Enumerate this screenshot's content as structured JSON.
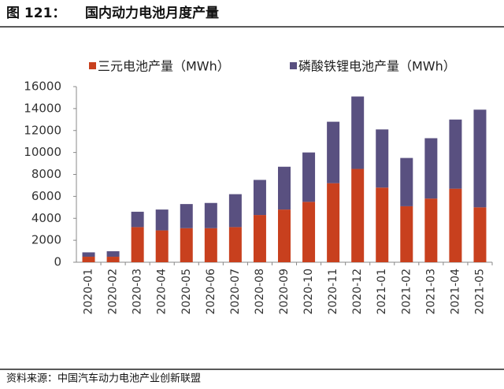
{
  "chart_data": {
    "type": "stacked_bar",
    "figure_number": "图 121：",
    "title": "国内动力电池月度产量",
    "source": "资料来源：中国汽车动力电池产业创新联盟",
    "categories": [
      "2020-01",
      "2020-02",
      "2020-03",
      "2020-04",
      "2020-05",
      "2020-06",
      "2020-07",
      "2020-08",
      "2020-09",
      "2020-10",
      "2020-11",
      "2020-12",
      "2021-01",
      "2021-02",
      "2021-03",
      "2021-04",
      "2021-05"
    ],
    "series": [
      {
        "name": "三元电池产量（MWh）",
        "color": "#c8401e",
        "values": [
          500,
          500,
          3200,
          2900,
          3100,
          3100,
          3200,
          4300,
          4800,
          5500,
          7200,
          8500,
          6800,
          5100,
          5800,
          6700,
          5000
        ]
      },
      {
        "name": "磷酸铁锂电池产量（MWh）",
        "color": "#595080",
        "values": [
          400,
          500,
          1400,
          1900,
          2200,
          2300,
          3000,
          3200,
          3900,
          4500,
          5600,
          6600,
          5300,
          4400,
          5500,
          6300,
          8900
        ]
      }
    ],
    "ylim": [
      0,
      16000
    ],
    "yticks": [
      0,
      2000,
      4000,
      6000,
      8000,
      10000,
      12000,
      14000,
      16000
    ],
    "grid": false
  }
}
